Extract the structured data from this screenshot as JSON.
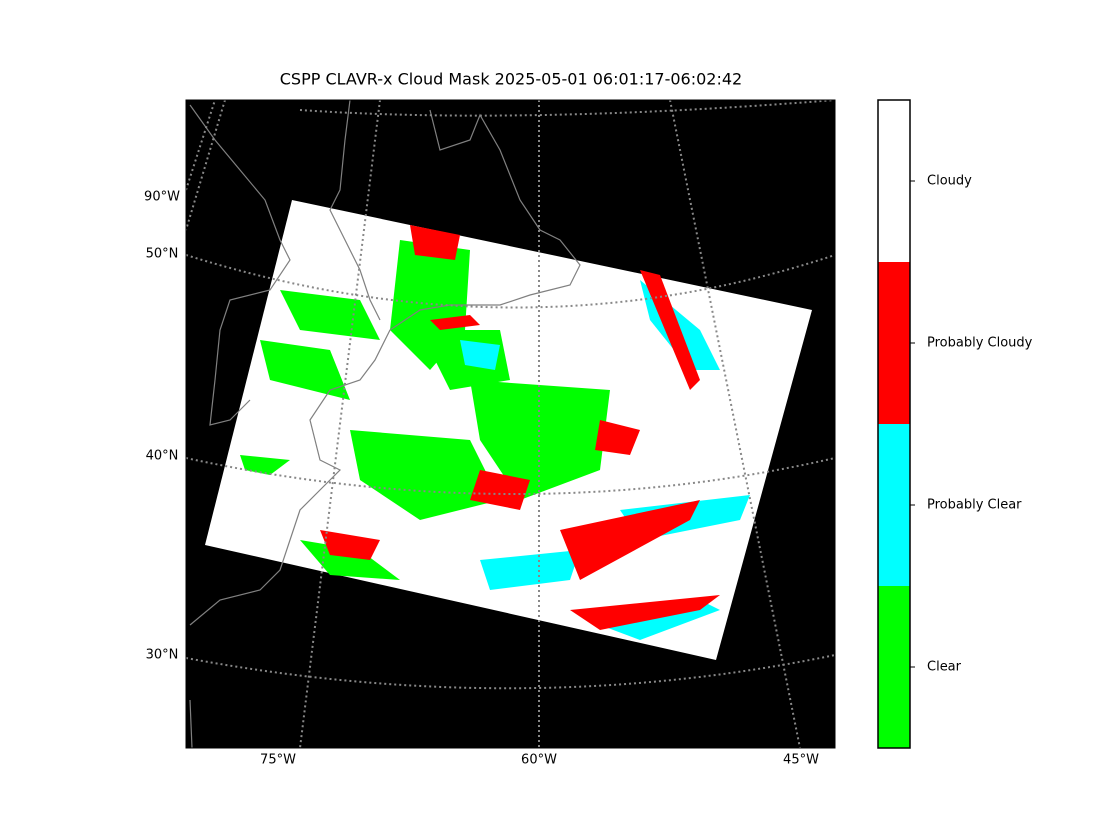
{
  "title": "CSPP CLAVR-x Cloud Mask 2025-05-01 06:01:17-06:02:42",
  "map": {
    "left_labels": [
      "90°W",
      "50°N",
      "40°N",
      "30°N"
    ],
    "bottom_labels": [
      "75°W",
      "60°W",
      "45°W"
    ],
    "background": "#000000",
    "coastline_color": "#808080",
    "graticule_color": "#888888"
  },
  "colorbar": {
    "classes": [
      {
        "name": "Clear",
        "color": "#00ff00"
      },
      {
        "name": "Probably Clear",
        "color": "#00ffff"
      },
      {
        "name": "Probably Cloudy",
        "color": "#ff0000"
      },
      {
        "name": "Cloudy",
        "color": "#ffffff"
      }
    ]
  }
}
